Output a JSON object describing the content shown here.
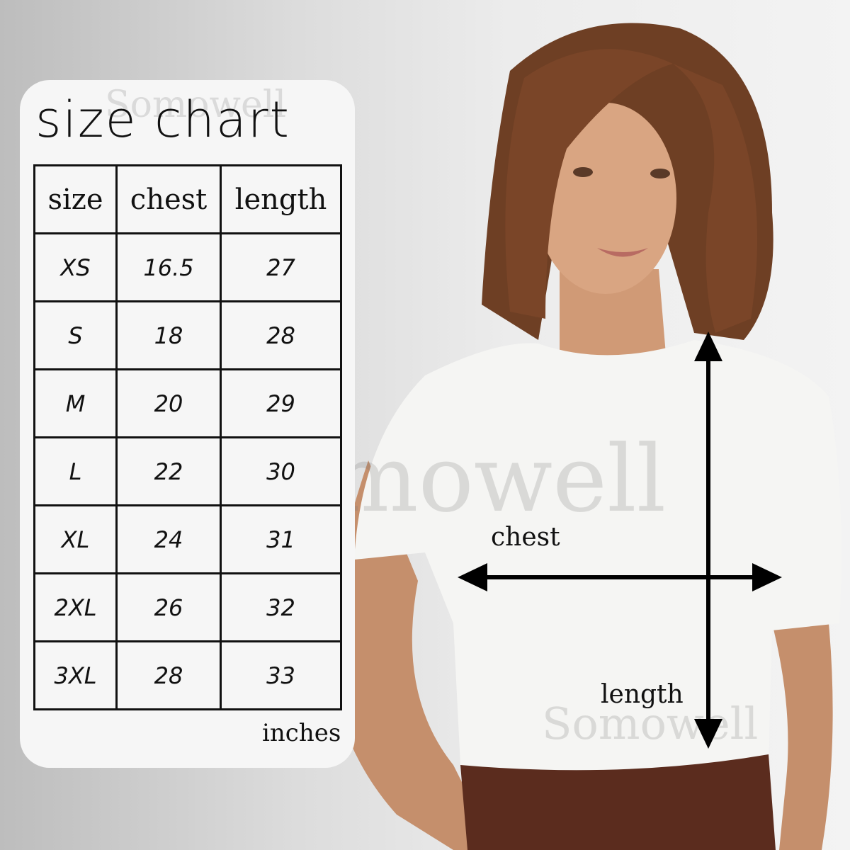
{
  "title": "size chart",
  "table": {
    "headers": [
      "size",
      "chest",
      "length"
    ],
    "rows": [
      [
        "XS",
        "16.5",
        "27"
      ],
      [
        "S",
        "18",
        "28"
      ],
      [
        "M",
        "20",
        "29"
      ],
      [
        "L",
        "22",
        "30"
      ],
      [
        "XL",
        "24",
        "31"
      ],
      [
        "2XL",
        "26",
        "32"
      ],
      [
        "3XL",
        "28",
        "33"
      ]
    ]
  },
  "units": "inches",
  "diagram": {
    "chest_label": "chest",
    "length_label": "length"
  },
  "watermark": "Somowell"
}
